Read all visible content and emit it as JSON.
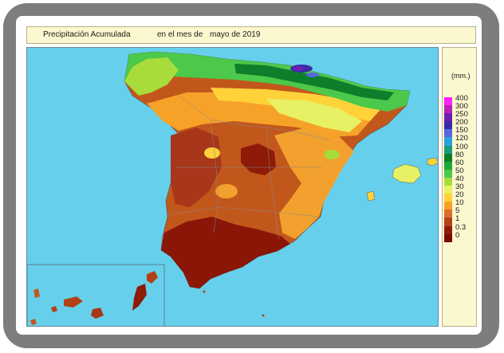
{
  "title": {
    "part1": "Precipitación Acumulada",
    "part2": "en el mes de",
    "part3": "mayo de 2019"
  },
  "legend": {
    "unit": "(mm.)",
    "items": [
      {
        "label": "400",
        "color": "#ff22ff"
      },
      {
        "label": "300",
        "color": "#b820b8"
      },
      {
        "label": "250",
        "color": "#6e1fb0"
      },
      {
        "label": "200",
        "color": "#3c2aa6"
      },
      {
        "label": "150",
        "color": "#5566e0"
      },
      {
        "label": "120",
        "color": "#2aa0e0"
      },
      {
        "label": "100",
        "color": "#1a9a78"
      },
      {
        "label": "80",
        "color": "#0e7e2a"
      },
      {
        "label": "60",
        "color": "#1aa83a"
      },
      {
        "label": "50",
        "color": "#4cc84a"
      },
      {
        "label": "40",
        "color": "#a8dc3a"
      },
      {
        "label": "30",
        "color": "#e8f064"
      },
      {
        "label": "20",
        "color": "#ffd23a"
      },
      {
        "label": "10",
        "color": "#f6a228"
      },
      {
        "label": "5",
        "color": "#dc6c2a"
      },
      {
        "label": "1",
        "color": "#b24216"
      },
      {
        "label": "0.3",
        "color": "#8e1a08"
      },
      {
        "label": "0",
        "color": "#7a0a04"
      }
    ]
  },
  "colors": {
    "sea": "#66d0ec",
    "frame": "#7d7d7d",
    "panel_fill": "#fbf7cf"
  }
}
